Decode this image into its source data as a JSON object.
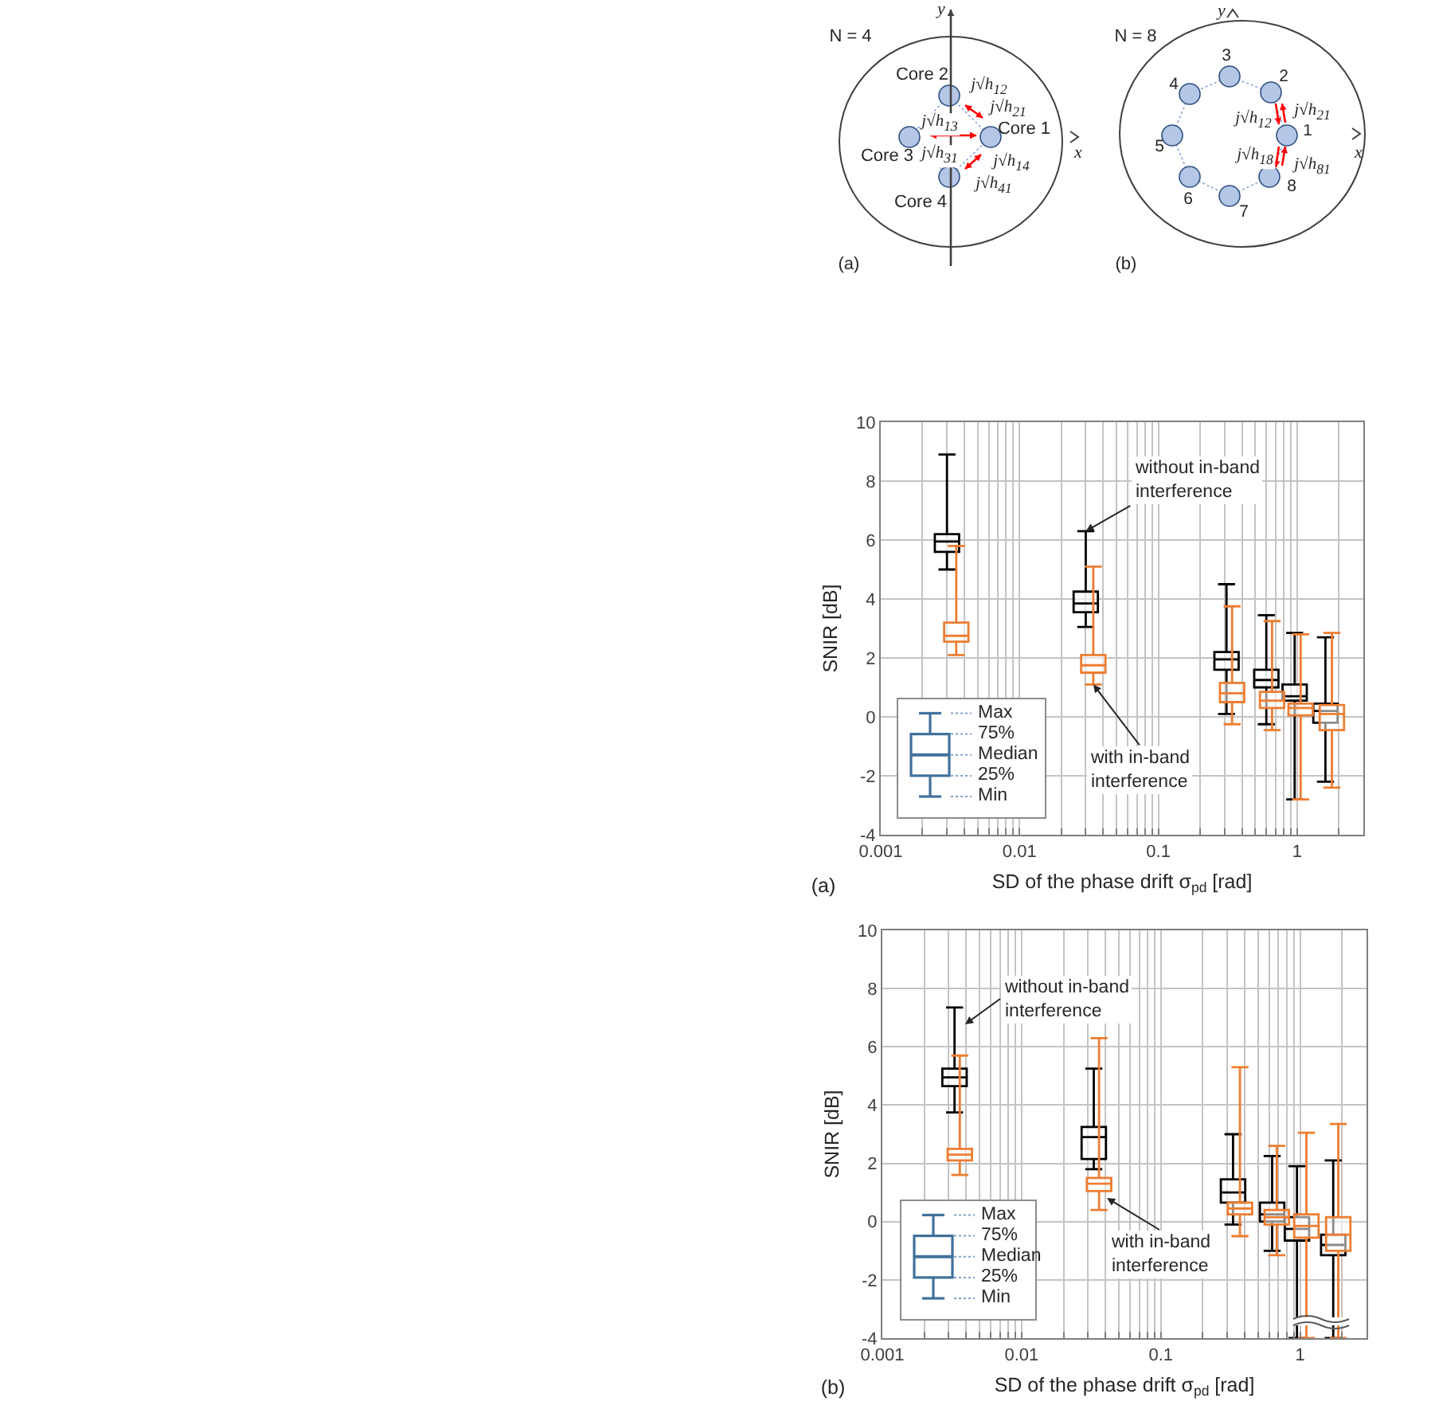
{
  "chart_data": [
    {
      "type": "other",
      "annotations": [
        "N = 4",
        "Core 1",
        "Core 2",
        "Core 3",
        "Core 4",
        "j√h$_{12}$",
        "j√h$_{21}$",
        "j√h$_{13}$",
        "j√h$_{31}$",
        "j√h$_{14}$",
        "j√h$_{41}$",
        "x",
        "y",
        "(a)",
        "N = 8",
        "1",
        "2",
        "3",
        "4",
        "5",
        "6",
        "7",
        "8",
        "j√h$_{12}$",
        "j√h$_{21}$",
        "j√h$_{18}$",
        "j√h$_{81}$",
        "x",
        "y",
        "(b)"
      ]
    },
    {
      "type": "box",
      "xlabel": "SD of the phase drift σ$_{pd}$ [rad]",
      "ylabel": "SNIR [dB]",
      "log": "x",
      "grid": true,
      "xlim": [
        0.001,
        3
      ],
      "xticks": [
        0.001,
        {
          "value": 0.002,
          "label": null
        },
        {
          "value": 0.003,
          "label": null
        },
        {
          "value": 0.004,
          "label": null
        },
        {
          "value": 0.005,
          "label": null
        },
        {
          "value": 0.006,
          "label": null
        },
        {
          "value": 0.007,
          "label": null
        },
        {
          "value": 0.008,
          "label": null
        },
        {
          "value": 0.009,
          "label": null
        },
        0.01,
        {
          "value": 0.02,
          "label": null
        },
        {
          "value": 0.03,
          "label": null
        },
        {
          "value": 0.04,
          "label": null
        },
        {
          "value": 0.05,
          "label": null
        },
        {
          "value": 0.06,
          "label": null
        },
        {
          "value": 0.07,
          "label": null
        },
        {
          "value": 0.08,
          "label": null
        },
        {
          "value": 0.09,
          "label": null
        },
        0.1,
        {
          "value": 0.2,
          "label": null
        },
        {
          "value": 0.3,
          "label": null
        },
        {
          "value": 0.4,
          "label": null
        },
        {
          "value": 0.5,
          "label": null
        },
        {
          "value": 0.6,
          "label": null
        },
        {
          "value": 0.7,
          "label": null
        },
        {
          "value": 0.8,
          "label": null
        },
        {
          "value": 0.9,
          "label": null
        },
        1,
        {
          "value": 2,
          "label": null
        }
      ],
      "ylim": [
        -4,
        10
      ],
      "yticks": [
        -4,
        -2,
        0,
        2,
        4,
        6,
        8,
        10
      ],
      "series": [
        {
          "color": "#000000",
          "x": [
            0.003,
            0.03,
            0.31,
            0.6,
            0.96,
            1.6
          ],
          "boxes": [
            {
              "low": 5.0,
              "q1": 5.6,
              "median": 5.95,
              "q3": 6.2,
              "high": 8.9
            },
            {
              "low": 3.05,
              "q1": 3.55,
              "median": 3.85,
              "q3": 4.25,
              "high": 6.3
            },
            {
              "low": 0.1,
              "q1": 1.6,
              "median": 1.95,
              "q3": 2.2,
              "high": 4.5
            },
            {
              "low": -0.25,
              "q1": 1.0,
              "median": 1.25,
              "q3": 1.6,
              "high": 3.45
            },
            {
              "low": -2.8,
              "q1": 0.55,
              "median": 0.7,
              "q3": 1.1,
              "high": 2.85
            },
            {
              "low": -2.2,
              "q1": -0.2,
              "median": 0.2,
              "q3": 0.45,
              "high": 2.7
            }
          ]
        },
        {
          "color": "#ed7d31",
          "x": [
            0.0035,
            0.034,
            0.34,
            0.66,
            1.06,
            1.78
          ],
          "boxes": [
            {
              "low": 2.1,
              "q1": 2.55,
              "median": 2.75,
              "q3": 3.2,
              "high": 5.8
            },
            {
              "low": 1.1,
              "q1": 1.5,
              "median": 1.75,
              "q3": 2.1,
              "high": 5.1
            },
            {
              "low": -0.25,
              "q1": 0.5,
              "median": 0.8,
              "q3": 1.15,
              "high": 3.75
            },
            {
              "low": -0.45,
              "q1": 0.3,
              "median": 0.55,
              "q3": 0.85,
              "high": 3.25
            },
            {
              "low": -2.8,
              "q1": 0.05,
              "median": 0.3,
              "q3": 0.45,
              "high": 2.8
            },
            {
              "low": -2.4,
              "q1": -0.45,
              "median": 0.1,
              "q3": 0.4,
              "high": 2.85
            }
          ]
        }
      ],
      "annotations": [
        {
          "text": "without in-band interference",
          "x": 0.03,
          "y": 6.3
        },
        {
          "text": "with in-band interference",
          "x": 0.034,
          "y": 1.1
        },
        "(a)"
      ]
    },
    {
      "type": "other",
      "annotations": [
        "Max",
        "75%",
        "Median",
        "25%",
        "Min"
      ]
    },
    {
      "type": "box",
      "xlabel": "SD of the phase drift σ$_{pd}$ [rad]",
      "ylabel": "SNIR [dB]",
      "log": "x",
      "grid": true,
      "xlim": [
        0.001,
        3
      ],
      "xticks": [
        0.001,
        {
          "value": 0.002,
          "label": null
        },
        {
          "value": 0.003,
          "label": null
        },
        {
          "value": 0.004,
          "label": null
        },
        {
          "value": 0.005,
          "label": null
        },
        {
          "value": 0.006,
          "label": null
        },
        {
          "value": 0.007,
          "label": null
        },
        {
          "value": 0.008,
          "label": null
        },
        {
          "value": 0.009,
          "label": null
        },
        0.01,
        {
          "value": 0.02,
          "label": null
        },
        {
          "value": 0.03,
          "label": null
        },
        {
          "value": 0.04,
          "label": null
        },
        {
          "value": 0.05,
          "label": null
        },
        {
          "value": 0.06,
          "label": null
        },
        {
          "value": 0.07,
          "label": null
        },
        {
          "value": 0.08,
          "label": null
        },
        {
          "value": 0.09,
          "label": null
        },
        0.1,
        {
          "value": 0.2,
          "label": null
        },
        {
          "value": 0.3,
          "label": null
        },
        {
          "value": 0.4,
          "label": null
        },
        {
          "value": 0.5,
          "label": null
        },
        {
          "value": 0.6,
          "label": null
        },
        {
          "value": 0.7,
          "label": null
        },
        {
          "value": 0.8,
          "label": null
        },
        {
          "value": 0.9,
          "label": null
        },
        1,
        {
          "value": 2,
          "label": null
        }
      ],
      "ylim": [
        -4,
        10
      ],
      "yticks": [
        -4,
        -2,
        0,
        2,
        4,
        6,
        8,
        10
      ],
      "series": [
        {
          "color": "#000000",
          "x": [
            0.0033,
            0.033,
            0.33,
            0.63,
            0.95,
            1.73
          ],
          "boxes": [
            {
              "low": 3.75,
              "q1": 4.65,
              "median": 4.95,
              "q3": 5.25,
              "high": 7.35
            },
            {
              "low": 1.8,
              "q1": 2.15,
              "median": 2.9,
              "q3": 3.25,
              "high": 5.25
            },
            {
              "low": -0.1,
              "q1": 0.65,
              "median": 1.0,
              "q3": 1.45,
              "high": 3.0
            },
            {
              "low": -1.0,
              "q1": 0.0,
              "median": 0.25,
              "q3": 0.65,
              "high": 2.25
            },
            {
              "low": -4,
              "q1": -0.65,
              "median": -0.25,
              "q3": 0.15,
              "high": 1.9
            },
            {
              "low": -4,
              "q1": -1.15,
              "median": -0.8,
              "q3": -0.45,
              "high": 2.1
            }
          ]
        },
        {
          "color": "#ed7d31",
          "x": [
            0.0036,
            0.036,
            0.37,
            0.68,
            1.11,
            1.88
          ],
          "boxes": [
            {
              "low": 1.6,
              "q1": 2.1,
              "median": 2.3,
              "q3": 2.5,
              "high": 5.7
            },
            {
              "low": 0.4,
              "q1": 1.05,
              "median": 1.3,
              "q3": 1.5,
              "high": 6.3
            },
            {
              "low": -0.5,
              "q1": 0.25,
              "median": 0.45,
              "q3": 0.65,
              "high": 5.3
            },
            {
              "low": -1.15,
              "q1": -0.1,
              "median": 0.15,
              "q3": 0.4,
              "high": 2.6
            },
            {
              "low": -4,
              "q1": -0.55,
              "median": -0.15,
              "q3": 0.25,
              "high": 3.05
            },
            {
              "low": -4,
              "q1": -1.0,
              "median": -0.45,
              "q3": 0.15,
              "high": 3.35
            }
          ]
        }
      ],
      "annotations": [
        "without in-band interference",
        "with in-band interference",
        "(b)"
      ]
    },
    {
      "type": "other",
      "annotations": [
        "Max",
        "75%",
        "Median",
        "25%",
        "Min"
      ]
    }
  ]
}
